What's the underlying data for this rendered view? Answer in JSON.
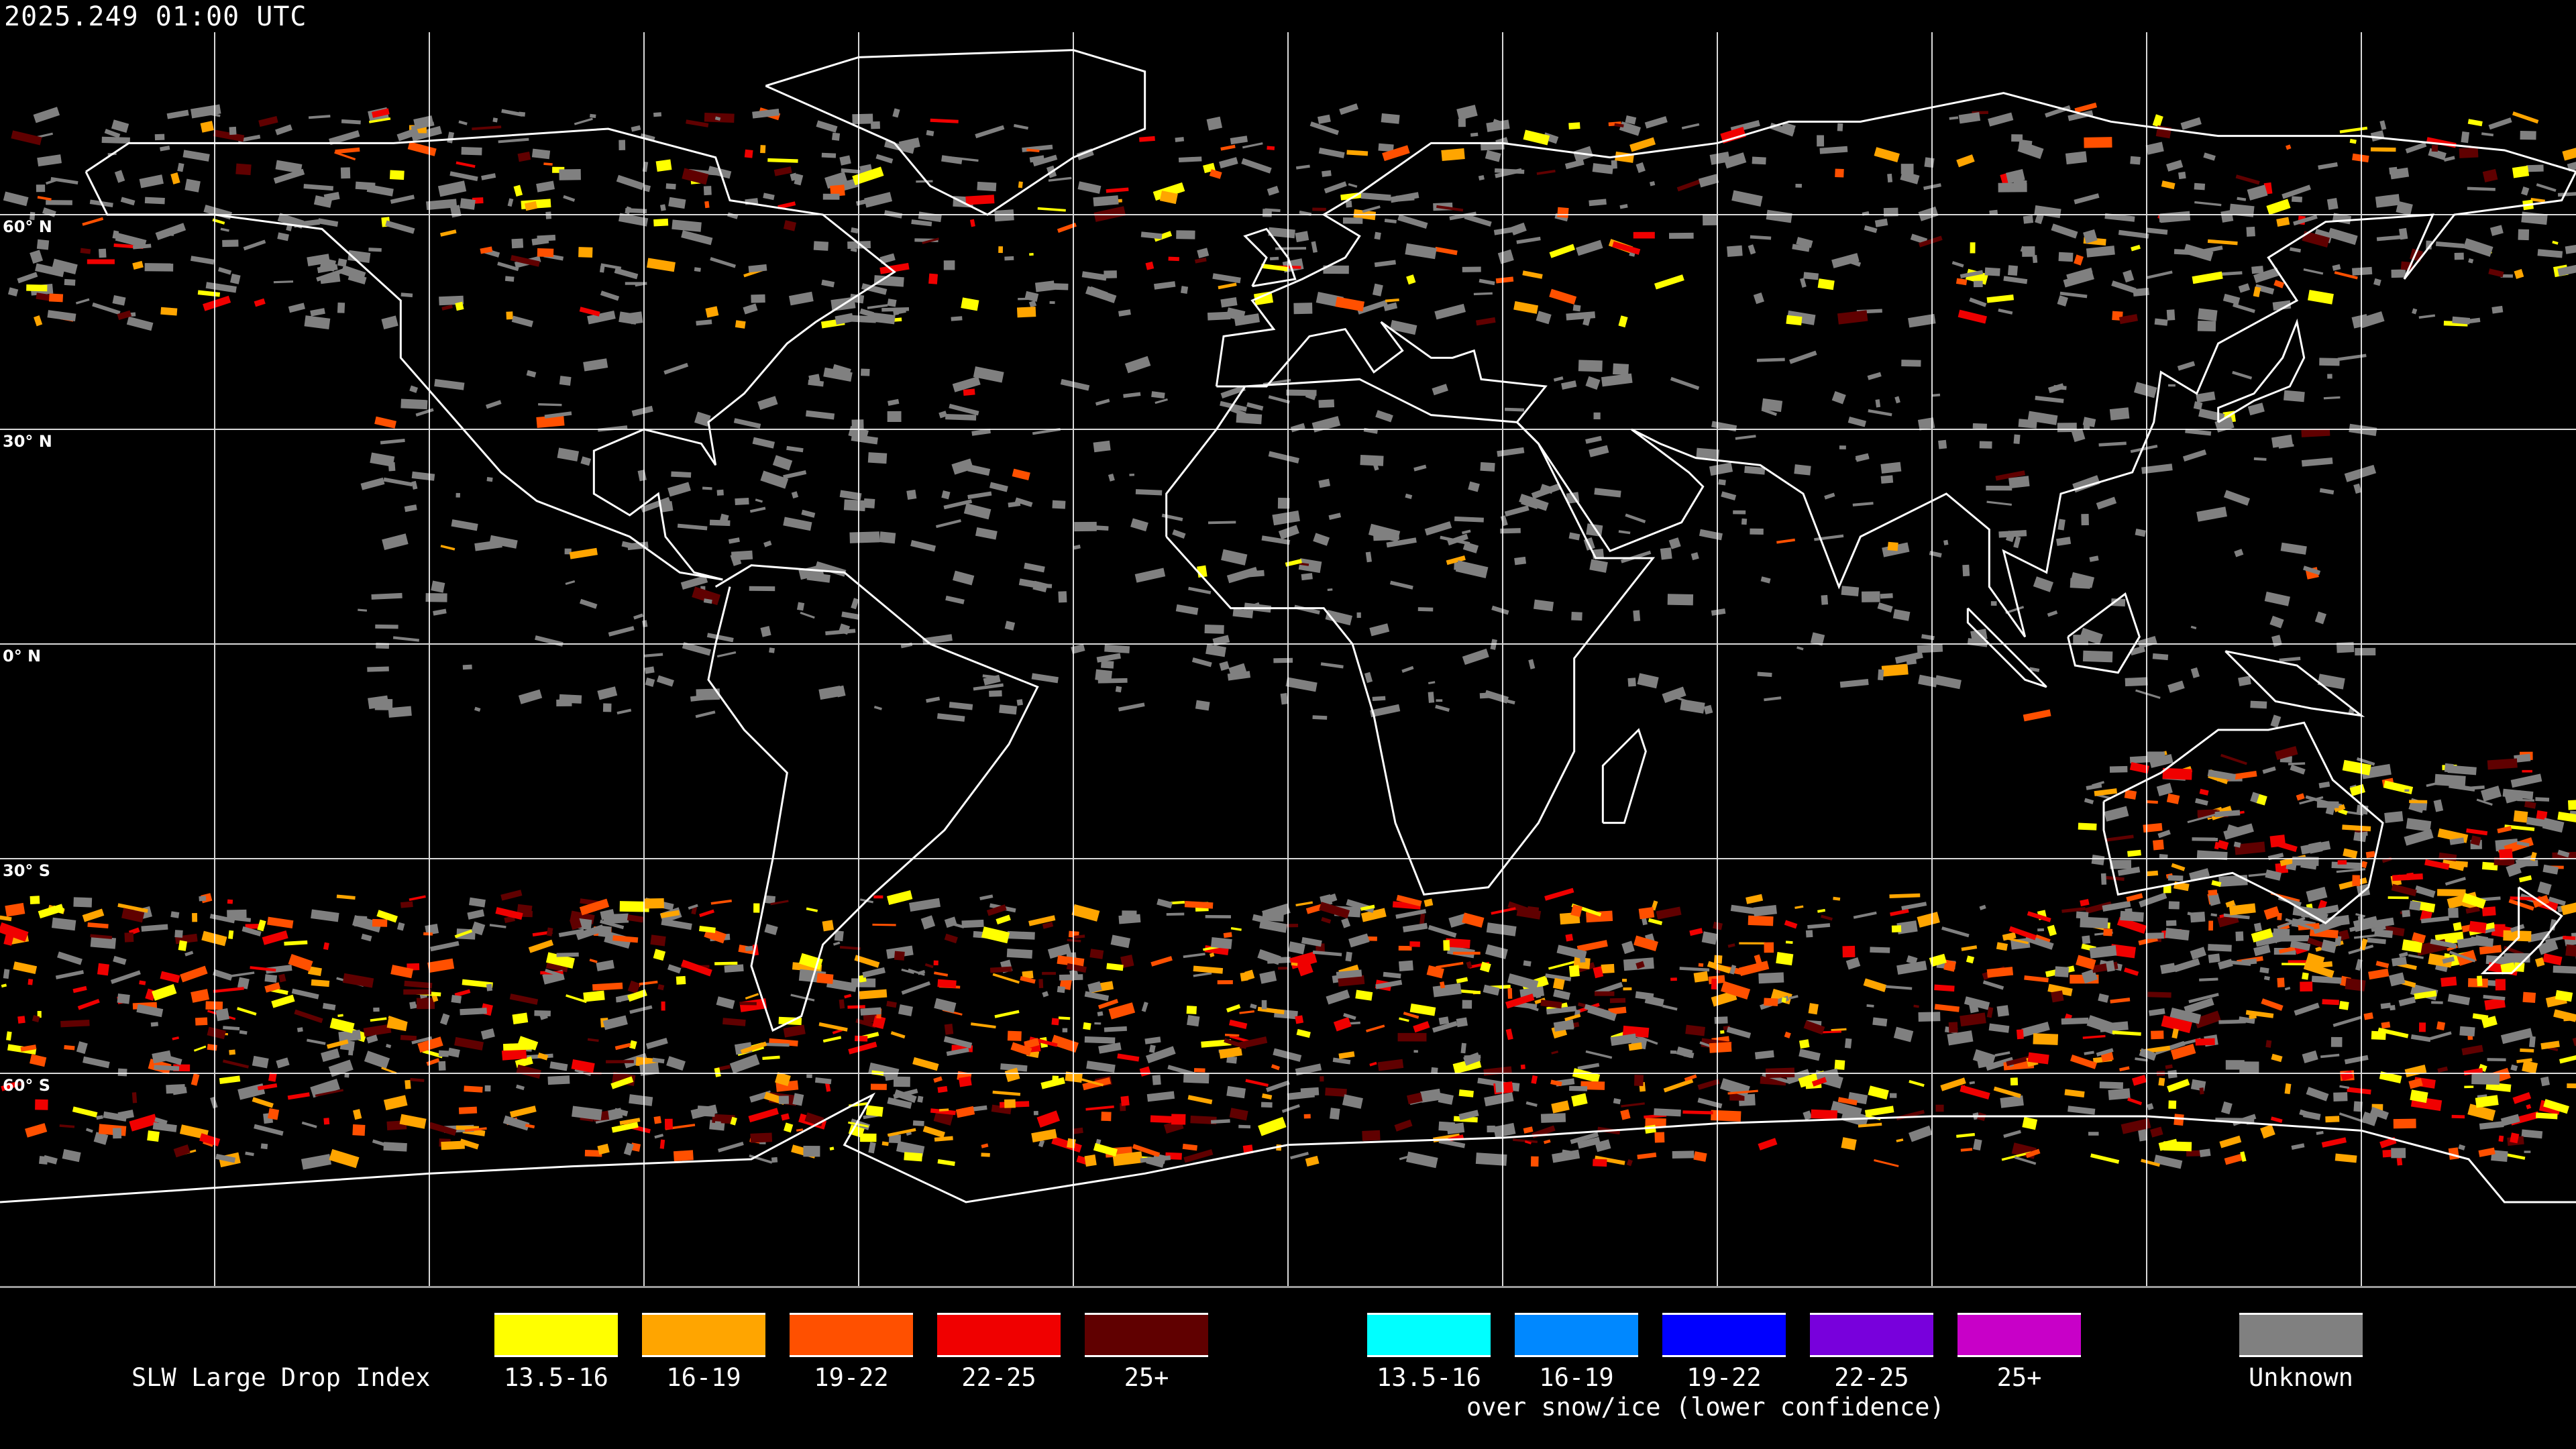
{
  "header": {
    "timestamp": "2025.249 01:00 UTC"
  },
  "map": {
    "projection": "equirectangular",
    "lat_labels": [
      "60° N",
      "30° N",
      "0° N",
      "30° S",
      "60° S"
    ],
    "grid_spacing_degrees": 30,
    "coastline_color": "#ffffff",
    "grid_color": "#ffffff"
  },
  "legend": {
    "title": "SLW Large Drop Index",
    "primary": [
      {
        "label": "13.5-16",
        "color": "#ffff00"
      },
      {
        "label": "16-19",
        "color": "#ffa500"
      },
      {
        "label": "19-22",
        "color": "#ff5000"
      },
      {
        "label": "22-25",
        "color": "#f00000"
      },
      {
        "label": "25+",
        "color": "#600000"
      }
    ],
    "snow_ice": [
      {
        "label": "13.5-16",
        "color": "#00ffff"
      },
      {
        "label": "16-19",
        "color": "#0088ff"
      },
      {
        "label": "19-22",
        "color": "#0000ff"
      },
      {
        "label": "22-25",
        "color": "#7800dc"
      },
      {
        "label": "25+",
        "color": "#c800c8"
      }
    ],
    "snow_ice_note": "over snow/ice (lower confidence)",
    "unknown": {
      "label": "Unknown",
      "color": "#808080"
    }
  }
}
